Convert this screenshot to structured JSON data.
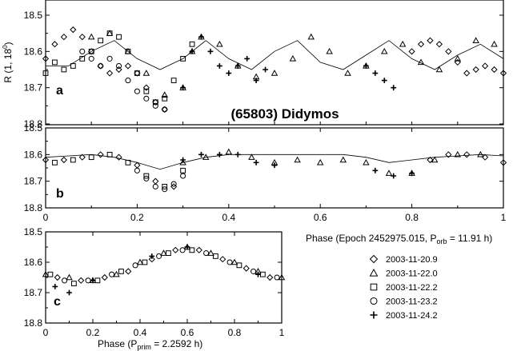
{
  "chart_data": {
    "title": "(65803) Didymos",
    "y_axis_label": "R (1, 18⁰)",
    "y_label_parts": {
      "main": "R (1, 18",
      "sup": "0",
      "close": ")"
    },
    "x_label_top": {
      "main": "Phase (Epoch 2452975.015, P",
      "sub": "orb",
      "rest": " = 11.91 h)"
    },
    "x_label_bottom": {
      "main": "Phase (P",
      "sub": "prim",
      "rest": " = 2.2592 h)"
    },
    "legend": [
      {
        "marker": "diamond",
        "label": "2003-11-20.9"
      },
      {
        "marker": "triangle",
        "label": "2003-11-22.0"
      },
      {
        "marker": "square",
        "label": "2003-11-22.2"
      },
      {
        "marker": "circle",
        "label": "2003-11-23.2"
      },
      {
        "marker": "plus",
        "label": "2003-11-24.2"
      }
    ],
    "panels": [
      {
        "id": "a",
        "type": "scatter",
        "label": "a",
        "xlim": [
          0,
          1
        ],
        "ylim": [
          18.5,
          18.8
        ],
        "y_inverted": true,
        "xticks": [],
        "yticks": [
          "18.5",
          "18.6",
          "18.7",
          "18.8"
        ],
        "ytick_values": [
          18.5,
          18.6,
          18.7,
          18.8
        ],
        "series": [
          {
            "name": "2003-11-20.9",
            "marker": "diamond",
            "x": [
              0.0,
              0.02,
              0.04,
              0.06,
              0.08,
              0.1,
              0.12,
              0.14,
              0.16,
              0.18,
              0.2,
              0.22,
              0.24,
              0.26,
              0.8,
              0.82,
              0.84,
              0.86,
              0.88,
              0.9,
              0.92,
              0.94,
              0.96,
              0.98,
              1.0
            ],
            "y": [
              18.62,
              18.58,
              18.56,
              18.54,
              18.56,
              18.6,
              18.64,
              18.66,
              18.65,
              18.64,
              18.66,
              18.7,
              18.74,
              18.76,
              18.6,
              18.58,
              18.57,
              18.58,
              18.6,
              18.63,
              18.66,
              18.65,
              18.64,
              18.65,
              18.66
            ]
          },
          {
            "name": "2003-11-22.0",
            "marker": "triangle",
            "x": [
              0.1,
              0.14,
              0.18,
              0.22,
              0.26,
              0.3,
              0.32,
              0.34,
              0.38,
              0.42,
              0.46,
              0.5,
              0.54,
              0.58,
              0.62,
              0.66,
              0.7,
              0.74,
              0.78,
              0.82,
              0.86,
              0.9,
              0.94,
              0.98
            ],
            "y": [
              18.56,
              18.55,
              18.6,
              18.66,
              18.72,
              18.7,
              18.6,
              18.56,
              18.58,
              18.64,
              18.67,
              18.66,
              18.62,
              18.56,
              18.6,
              18.66,
              18.64,
              18.6,
              18.58,
              18.63,
              18.65,
              18.62,
              18.57,
              18.58
            ]
          },
          {
            "name": "2003-11-22.2",
            "marker": "square",
            "x": [
              0.0,
              0.02,
              0.04,
              0.06,
              0.08,
              0.1,
              0.12,
              0.14,
              0.16,
              0.18,
              0.2,
              0.22,
              0.24,
              0.26,
              0.28,
              0.3,
              0.32
            ],
            "y": [
              18.66,
              18.63,
              18.65,
              18.64,
              18.62,
              18.6,
              18.57,
              18.55,
              18.56,
              18.6,
              18.66,
              18.71,
              18.74,
              18.73,
              18.68,
              18.62,
              18.58
            ]
          },
          {
            "name": "2003-11-23.2",
            "marker": "circle",
            "x": [
              0.08,
              0.1,
              0.12,
              0.14,
              0.16,
              0.18,
              0.2,
              0.22,
              0.24,
              0.26
            ],
            "y": [
              18.6,
              18.62,
              18.64,
              18.62,
              18.64,
              18.68,
              18.71,
              18.73,
              18.75,
              18.76
            ]
          },
          {
            "name": "2003-11-24.2",
            "marker": "plus",
            "x": [
              0.3,
              0.32,
              0.34,
              0.36,
              0.38,
              0.4,
              0.42,
              0.44,
              0.46,
              0.48,
              0.7,
              0.72,
              0.74,
              0.76
            ],
            "y": [
              18.7,
              18.6,
              18.56,
              18.6,
              18.64,
              18.66,
              18.64,
              18.62,
              18.68,
              18.65,
              18.64,
              18.66,
              18.68,
              18.7
            ]
          }
        ],
        "model_curve": {
          "x": [
            0.0,
            0.05,
            0.1,
            0.15,
            0.2,
            0.25,
            0.3,
            0.35,
            0.4,
            0.45,
            0.5,
            0.55,
            0.6,
            0.65,
            0.7,
            0.75,
            0.8,
            0.85,
            0.9,
            0.95,
            1.0
          ],
          "y": [
            18.64,
            18.64,
            18.6,
            18.57,
            18.62,
            18.65,
            18.62,
            18.57,
            18.62,
            18.65,
            18.6,
            18.57,
            18.63,
            18.65,
            18.61,
            18.57,
            18.62,
            18.65,
            18.61,
            18.58,
            18.62
          ]
        }
      },
      {
        "id": "b",
        "type": "scatter",
        "label": "b",
        "xlim": [
          0,
          1
        ],
        "ylim": [
          18.5,
          18.8
        ],
        "y_inverted": true,
        "xticks": [
          "0",
          "0.2",
          "0.4",
          "0.6",
          "0.8",
          "1"
        ],
        "xtick_values": [
          0,
          0.2,
          0.4,
          0.6,
          0.8,
          1
        ],
        "yticks": [
          "18.5",
          "18.6",
          "18.7",
          "18.8"
        ],
        "ytick_values": [
          18.5,
          18.6,
          18.7,
          18.8
        ],
        "series": [
          {
            "name": "2003-11-20.9",
            "marker": "diamond",
            "x": [
              0.0,
              0.04,
              0.08,
              0.12,
              0.16,
              0.2,
              0.24,
              0.28,
              0.84,
              0.88,
              0.92,
              0.96,
              1.0
            ],
            "y": [
              18.62,
              18.62,
              18.61,
              18.6,
              18.61,
              18.64,
              18.7,
              18.72,
              18.62,
              18.6,
              18.6,
              18.61,
              18.63
            ]
          },
          {
            "name": "2003-11-22.0",
            "marker": "triangle",
            "x": [
              0.3,
              0.35,
              0.4,
              0.45,
              0.5,
              0.55,
              0.6,
              0.65,
              0.7,
              0.75,
              0.8,
              0.85,
              0.9,
              0.95
            ],
            "y": [
              18.63,
              18.61,
              18.59,
              18.61,
              18.63,
              18.62,
              18.63,
              18.62,
              18.63,
              18.67,
              18.67,
              18.62,
              18.6,
              18.6
            ]
          },
          {
            "name": "2003-11-22.2",
            "marker": "square",
            "x": [
              0.02,
              0.06,
              0.1,
              0.14,
              0.18,
              0.22,
              0.26,
              0.3
            ],
            "y": [
              18.63,
              18.62,
              18.61,
              18.6,
              18.63,
              18.68,
              18.72,
              18.66
            ]
          },
          {
            "name": "2003-11-23.2",
            "marker": "circle",
            "x": [
              0.2,
              0.22,
              0.24,
              0.26,
              0.28,
              0.3
            ],
            "y": [
              18.66,
              18.69,
              18.72,
              18.73,
              18.71,
              18.68
            ]
          },
          {
            "name": "2003-11-24.2",
            "marker": "plus",
            "x": [
              0.3,
              0.34,
              0.38,
              0.42,
              0.46,
              0.5,
              0.72,
              0.76,
              0.8
            ],
            "y": [
              18.62,
              18.6,
              18.6,
              18.6,
              18.63,
              18.64,
              18.66,
              18.68,
              18.67
            ]
          }
        ],
        "model_curve": {
          "x": [
            0.0,
            0.05,
            0.1,
            0.15,
            0.2,
            0.25,
            0.3,
            0.35,
            0.4,
            0.45,
            0.5,
            0.55,
            0.6,
            0.65,
            0.7,
            0.75,
            0.8,
            0.85,
            0.9,
            0.95,
            1.0
          ],
          "y": [
            18.61,
            18.605,
            18.6,
            18.61,
            18.63,
            18.655,
            18.63,
            18.61,
            18.6,
            18.6,
            18.6,
            18.6,
            18.6,
            18.6,
            18.61,
            18.63,
            18.62,
            18.61,
            18.605,
            18.6,
            18.605
          ]
        }
      },
      {
        "id": "c",
        "type": "scatter",
        "label": "c",
        "xlim": [
          0,
          1
        ],
        "ylim": [
          18.5,
          18.8
        ],
        "y_inverted": true,
        "xticks": [
          "0",
          "0.2",
          "0.4",
          "0.6",
          "0.8",
          "1"
        ],
        "xtick_values": [
          0,
          0.2,
          0.4,
          0.6,
          0.8,
          1
        ],
        "yticks": [
          "18.5",
          "18.6",
          "18.7",
          "18.8"
        ],
        "ytick_values": [
          18.5,
          18.6,
          18.7,
          18.8
        ],
        "series": [
          {
            "name": "2003-11-20.9",
            "marker": "diamond",
            "x": [
              0.05,
              0.15,
              0.25,
              0.35,
              0.45,
              0.55,
              0.65,
              0.75,
              0.85,
              0.95
            ],
            "y": [
              18.65,
              18.66,
              18.65,
              18.63,
              18.59,
              18.56,
              18.56,
              18.59,
              18.62,
              18.65
            ]
          },
          {
            "name": "2003-11-22.0",
            "marker": "triangle",
            "x": [
              0.0,
              0.1,
              0.2,
              0.3,
              0.4,
              0.5,
              0.6,
              0.7,
              0.8,
              0.9,
              1.0
            ],
            "y": [
              18.64,
              18.65,
              18.66,
              18.64,
              18.6,
              18.57,
              18.55,
              18.57,
              18.6,
              18.63,
              18.65
            ]
          },
          {
            "name": "2003-11-22.2",
            "marker": "square",
            "x": [
              0.02,
              0.12,
              0.22,
              0.32,
              0.42,
              0.52,
              0.62,
              0.72,
              0.82,
              0.92
            ],
            "y": [
              18.64,
              18.67,
              18.66,
              18.63,
              18.6,
              18.57,
              18.56,
              18.58,
              18.61,
              18.64
            ]
          },
          {
            "name": "2003-11-23.2",
            "marker": "circle",
            "x": [
              0.08,
              0.18,
              0.28,
              0.38,
              0.48,
              0.58,
              0.68,
              0.78,
              0.88,
              0.98
            ],
            "y": [
              18.66,
              18.66,
              18.64,
              18.61,
              18.58,
              18.56,
              18.57,
              18.6,
              18.63,
              18.65
            ]
          },
          {
            "name": "2003-11-24.2",
            "marker": "plus",
            "x": [
              0.04,
              0.1,
              0.2,
              0.45,
              0.6,
              0.9
            ],
            "y": [
              18.68,
              18.7,
              18.66,
              18.58,
              18.55,
              18.64
            ]
          }
        ],
        "model_curve": null
      }
    ]
  }
}
